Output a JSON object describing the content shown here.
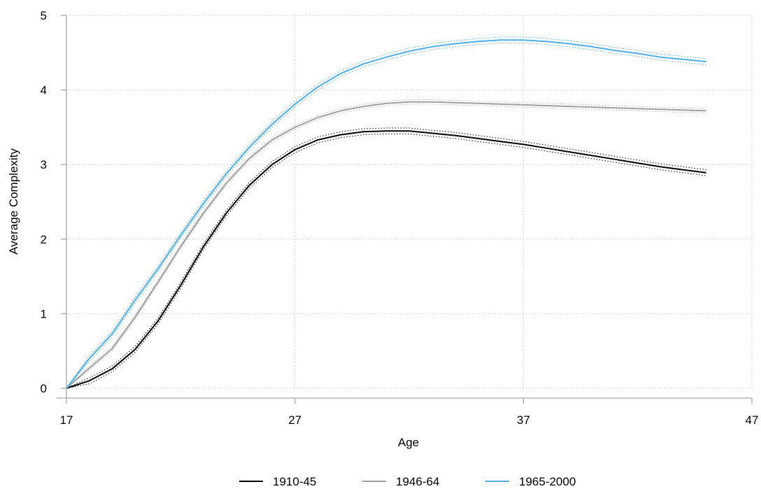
{
  "chart_data": {
    "type": "line",
    "title": "",
    "xlabel": "Age",
    "ylabel": "Average Complexity",
    "xlim": [
      17,
      47
    ],
    "ylim": [
      0,
      5
    ],
    "xticks": [
      17,
      27,
      37,
      47
    ],
    "yticks": [
      0,
      1,
      2,
      3,
      4,
      5
    ],
    "grid": true,
    "legend_position": "bottom",
    "x": [
      17,
      18,
      19,
      20,
      21,
      22,
      23,
      24,
      25,
      26,
      27,
      28,
      29,
      30,
      31,
      32,
      33,
      34,
      35,
      36,
      37,
      38,
      39,
      40,
      41,
      42,
      43,
      44,
      45
    ],
    "series": [
      {
        "name": "1910-45",
        "color": "#000000",
        "values": [
          0,
          0.1,
          0.26,
          0.52,
          0.9,
          1.38,
          1.9,
          2.35,
          2.72,
          3.0,
          3.2,
          3.33,
          3.4,
          3.44,
          3.45,
          3.45,
          3.42,
          3.39,
          3.35,
          3.31,
          3.27,
          3.22,
          3.17,
          3.12,
          3.07,
          3.02,
          2.97,
          2.93,
          2.89
        ],
        "ci_halfwidth": 0.04
      },
      {
        "name": "1946-64",
        "color": "#a0a0a0",
        "values": [
          0,
          0.27,
          0.53,
          0.95,
          1.42,
          1.9,
          2.35,
          2.75,
          3.08,
          3.33,
          3.5,
          3.63,
          3.72,
          3.78,
          3.82,
          3.84,
          3.84,
          3.83,
          3.82,
          3.81,
          3.8,
          3.79,
          3.78,
          3.77,
          3.76,
          3.75,
          3.74,
          3.73,
          3.72
        ],
        "ci_halfwidth": 0.03
      },
      {
        "name": "1965-2000",
        "color": "#4faee6",
        "values": [
          0,
          0.4,
          0.73,
          1.18,
          1.6,
          2.05,
          2.48,
          2.88,
          3.23,
          3.54,
          3.81,
          4.04,
          4.22,
          4.35,
          4.44,
          4.52,
          4.58,
          4.62,
          4.65,
          4.67,
          4.67,
          4.65,
          4.62,
          4.58,
          4.53,
          4.49,
          4.44,
          4.41,
          4.38
        ],
        "ci_halfwidth": 0.04
      }
    ]
  }
}
